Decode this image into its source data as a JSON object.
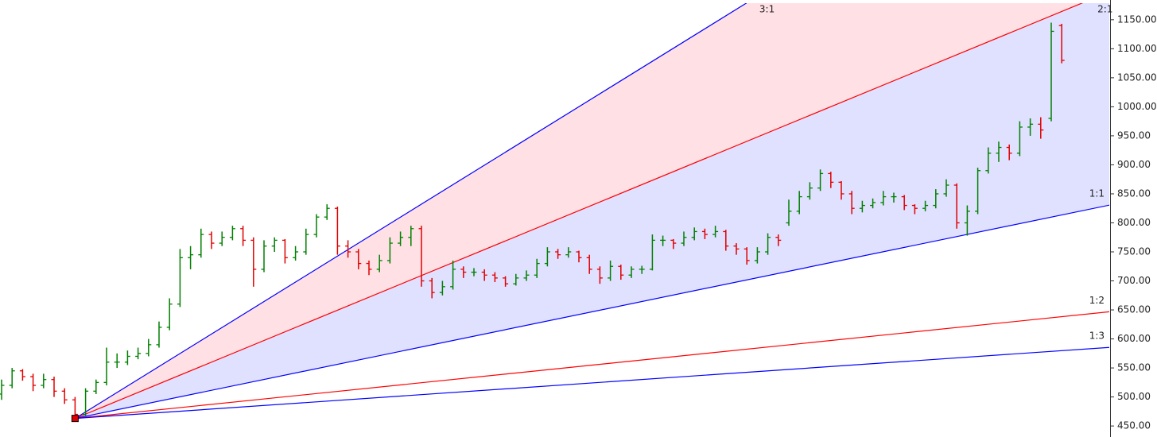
{
  "chart_data": {
    "type": "ohlc",
    "up_color": "#008000",
    "down_color": "#e00000",
    "ylim": [
      431,
      1184
    ],
    "yticks": [
      {
        "value": 450,
        "label": "450.00"
      },
      {
        "value": 500,
        "label": "500.00"
      },
      {
        "value": 550,
        "label": "550.00"
      },
      {
        "value": 600,
        "label": "600.00"
      },
      {
        "value": 650,
        "label": "650.00"
      },
      {
        "value": 700,
        "label": "700.00"
      },
      {
        "value": 750,
        "label": "750.00"
      },
      {
        "value": 800,
        "label": "800.00"
      },
      {
        "value": 850,
        "label": "850.00"
      },
      {
        "value": 900,
        "label": "900.00"
      },
      {
        "value": 950,
        "label": "950.00"
      },
      {
        "value": 1000,
        "label": "1000.00"
      },
      {
        "value": 1050,
        "label": "1050.00"
      },
      {
        "value": 1100,
        "label": "1100.00"
      },
      {
        "value": 1150,
        "label": "1150.00"
      }
    ],
    "ohlc": [
      [
        505,
        530,
        495,
        520
      ],
      [
        520,
        550,
        515,
        545
      ],
      [
        545,
        548,
        528,
        535
      ],
      [
        535,
        540,
        510,
        520
      ],
      [
        520,
        540,
        515,
        530
      ],
      [
        530,
        535,
        500,
        510
      ],
      [
        510,
        515,
        488,
        495
      ],
      [
        495,
        500,
        463,
        470
      ],
      [
        470,
        515,
        468,
        510
      ],
      [
        510,
        530,
        505,
        525
      ],
      [
        525,
        585,
        520,
        560
      ],
      [
        560,
        575,
        550,
        560
      ],
      [
        560,
        580,
        555,
        570
      ],
      [
        570,
        585,
        565,
        575
      ],
      [
        575,
        600,
        570,
        590
      ],
      [
        590,
        630,
        585,
        620
      ],
      [
        620,
        670,
        615,
        660
      ],
      [
        660,
        755,
        655,
        740
      ],
      [
        740,
        760,
        720,
        745
      ],
      [
        745,
        790,
        740,
        780
      ],
      [
        780,
        785,
        755,
        765
      ],
      [
        765,
        785,
        760,
        775
      ],
      [
        775,
        795,
        770,
        790
      ],
      [
        790,
        795,
        760,
        770
      ],
      [
        770,
        775,
        690,
        720
      ],
      [
        720,
        770,
        715,
        760
      ],
      [
        760,
        775,
        750,
        770
      ],
      [
        770,
        772,
        730,
        740
      ],
      [
        740,
        760,
        735,
        750
      ],
      [
        750,
        790,
        745,
        780
      ],
      [
        780,
        815,
        775,
        810
      ],
      [
        810,
        832,
        805,
        825
      ],
      [
        825,
        828,
        745,
        760
      ],
      [
        760,
        770,
        740,
        750
      ],
      [
        750,
        755,
        720,
        730
      ],
      [
        730,
        735,
        710,
        720
      ],
      [
        720,
        745,
        715,
        735
      ],
      [
        735,
        775,
        730,
        765
      ],
      [
        765,
        785,
        760,
        775
      ],
      [
        775,
        795,
        760,
        790
      ],
      [
        790,
        795,
        690,
        700
      ],
      [
        700,
        705,
        670,
        680
      ],
      [
        680,
        700,
        675,
        690
      ],
      [
        690,
        735,
        685,
        720
      ],
      [
        720,
        725,
        705,
        715
      ],
      [
        715,
        722,
        708,
        715
      ],
      [
        715,
        720,
        700,
        710
      ],
      [
        710,
        715,
        698,
        705
      ],
      [
        705,
        708,
        690,
        695
      ],
      [
        695,
        712,
        692,
        705
      ],
      [
        705,
        718,
        700,
        710
      ],
      [
        710,
        738,
        705,
        730
      ],
      [
        730,
        758,
        725,
        750
      ],
      [
        750,
        755,
        738,
        745
      ],
      [
        745,
        758,
        740,
        750
      ],
      [
        750,
        752,
        732,
        740
      ],
      [
        740,
        745,
        712,
        720
      ],
      [
        720,
        725,
        695,
        705
      ],
      [
        705,
        735,
        700,
        725
      ],
      [
        725,
        728,
        702,
        710
      ],
      [
        710,
        725,
        705,
        720
      ],
      [
        720,
        726,
        712,
        720
      ],
      [
        720,
        780,
        718,
        770
      ],
      [
        770,
        778,
        760,
        770
      ],
      [
        770,
        772,
        755,
        765
      ],
      [
        765,
        785,
        760,
        775
      ],
      [
        775,
        792,
        770,
        785
      ],
      [
        785,
        790,
        772,
        780
      ],
      [
        780,
        795,
        775,
        785
      ],
      [
        785,
        788,
        752,
        760
      ],
      [
        760,
        765,
        745,
        755
      ],
      [
        755,
        758,
        728,
        735
      ],
      [
        735,
        758,
        730,
        750
      ],
      [
        750,
        782,
        745,
        775
      ],
      [
        775,
        780,
        760,
        770
      ],
      [
        800,
        840,
        795,
        820
      ],
      [
        820,
        855,
        815,
        845
      ],
      [
        845,
        870,
        840,
        860
      ],
      [
        860,
        892,
        855,
        885
      ],
      [
        885,
        888,
        860,
        870
      ],
      [
        870,
        872,
        840,
        850
      ],
      [
        850,
        855,
        815,
        825
      ],
      [
        825,
        838,
        818,
        830
      ],
      [
        830,
        842,
        825,
        835
      ],
      [
        835,
        855,
        830,
        845
      ],
      [
        845,
        852,
        835,
        845
      ],
      [
        845,
        848,
        822,
        830
      ],
      [
        830,
        832,
        815,
        825
      ],
      [
        825,
        838,
        820,
        830
      ],
      [
        830,
        858,
        825,
        850
      ],
      [
        850,
        875,
        845,
        865
      ],
      [
        865,
        868,
        790,
        800
      ],
      [
        800,
        830,
        778,
        820
      ],
      [
        820,
        895,
        815,
        890
      ],
      [
        890,
        930,
        885,
        920
      ],
      [
        920,
        940,
        905,
        930
      ],
      [
        930,
        935,
        908,
        920
      ],
      [
        920,
        975,
        915,
        965
      ],
      [
        965,
        980,
        950,
        970
      ],
      [
        970,
        982,
        945,
        960
      ],
      [
        980,
        1145,
        975,
        1130
      ],
      [
        1140,
        1143,
        1075,
        1080
      ]
    ],
    "fan": {
      "origin": {
        "bar": 7,
        "price": 463
      },
      "unit": 3.73,
      "lines": [
        {
          "label": "3:1",
          "ratio": 3,
          "color": "#0000ff",
          "fill_to_next": "#ffe0e4"
        },
        {
          "label": "2:1",
          "ratio": 2,
          "color": "#ff0000",
          "fill_to_next": "#e0e0ff"
        },
        {
          "label": "1:1",
          "ratio": 1,
          "color": "#0000ff"
        },
        {
          "label": "1:2",
          "ratio": 0.5,
          "color": "#ff0000"
        },
        {
          "label": "1:3",
          "ratio": 0.333,
          "color": "#0000ff"
        }
      ]
    }
  }
}
